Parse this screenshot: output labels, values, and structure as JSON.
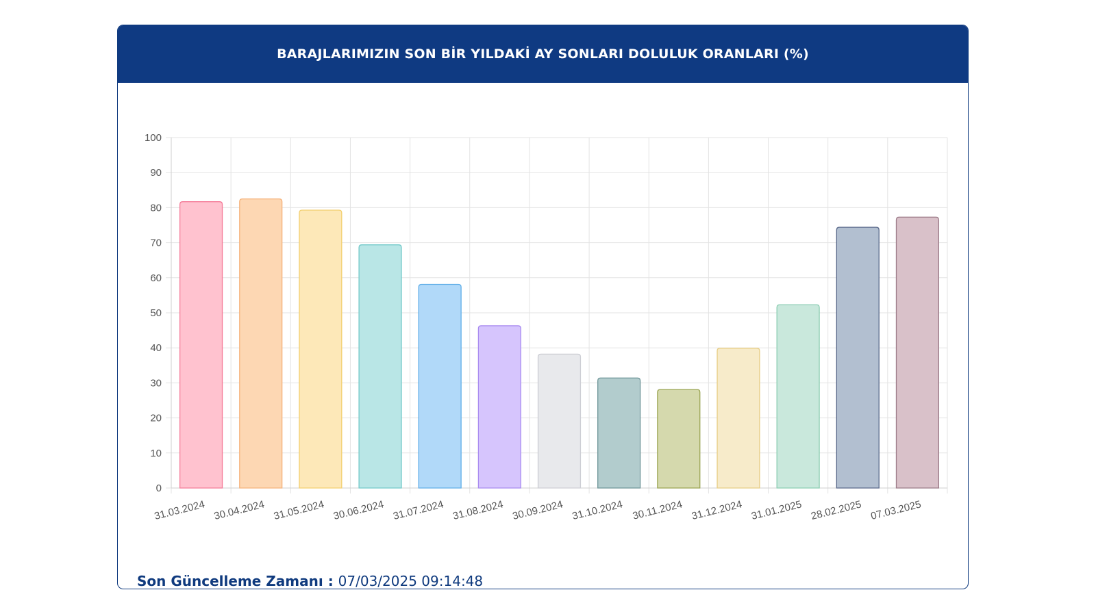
{
  "card": {
    "title": "BARAJLARIMIZIN SON BİR YILDAKİ AY SONLARI DOLULUK ORANLARI (%)"
  },
  "footer": {
    "update_label": "Son Güncelleme Zamanı",
    "separator": " : ",
    "update_value": "07/03/2025 09:14:48"
  },
  "colors": {
    "header_bg": "#0f3a82",
    "accent": "#0f3a7e"
  },
  "chart_data": {
    "type": "bar",
    "title": "BARAJLARIMIZIN SON BİR YILDAKİ AY SONLARI DOLULUK ORANLARI (%)",
    "xlabel": "",
    "ylabel": "",
    "ylim": [
      0,
      100
    ],
    "yticks": [
      0,
      10,
      20,
      30,
      40,
      50,
      60,
      70,
      80,
      90,
      100
    ],
    "grid": true,
    "legend": "none",
    "categories": [
      "31.03.2024",
      "30.04.2024",
      "31.05.2024",
      "30.06.2024",
      "31.07.2024",
      "31.08.2024",
      "30.09.2024",
      "31.10.2024",
      "30.11.2024",
      "31.12.2024",
      "31.01.2025",
      "28.02.2025",
      "07.03.2025"
    ],
    "values": [
      81.7,
      82.5,
      79.3,
      69.4,
      58.1,
      46.3,
      38.2,
      31.4,
      28.1,
      39.9,
      52.3,
      74.4,
      77.3
    ],
    "fills": [
      "#ffc2cf",
      "#fdd7b3",
      "#fde8b8",
      "#b9e6e6",
      "#b1d9f9",
      "#d6c5fd",
      "#e8e9ec",
      "#b2cccd",
      "#d5d9ad",
      "#f7ebca",
      "#c9e8dc",
      "#b2bfd0",
      "#d9c1c9"
    ],
    "strokes": [
      "#f57b98",
      "#f5b27a",
      "#f3cf6e",
      "#72c9c9",
      "#5faee8",
      "#a88af0",
      "#cdced4",
      "#6e9598",
      "#9aa451",
      "#e7cd84",
      "#8bcdb2",
      "#59698a",
      "#9c7b88"
    ]
  }
}
